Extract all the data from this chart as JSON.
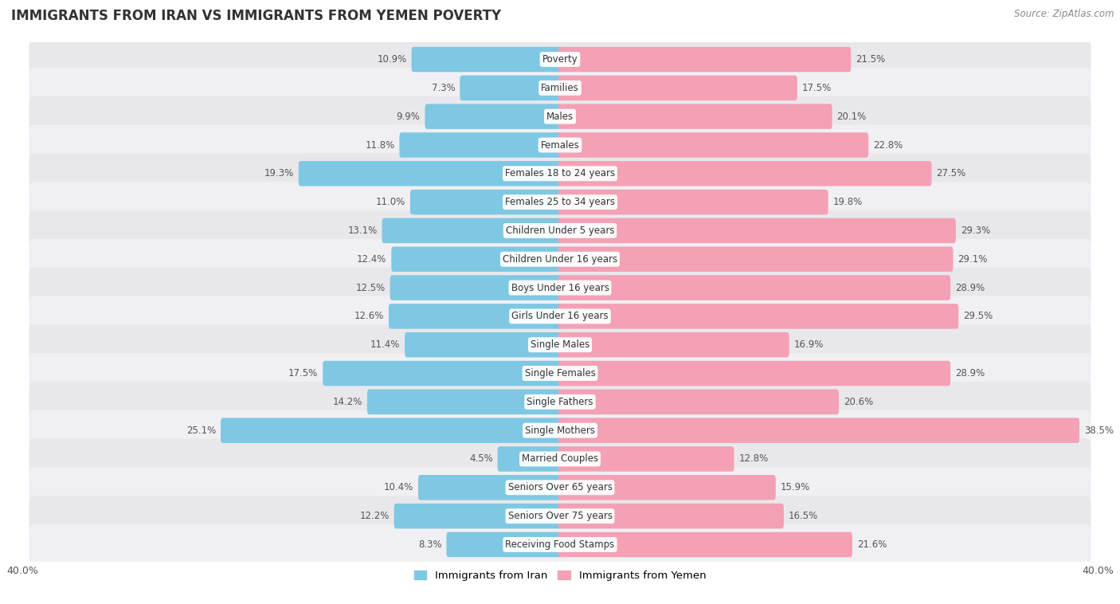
{
  "title": "IMMIGRANTS FROM IRAN VS IMMIGRANTS FROM YEMEN POVERTY",
  "source": "Source: ZipAtlas.com",
  "categories": [
    "Poverty",
    "Families",
    "Males",
    "Females",
    "Females 18 to 24 years",
    "Females 25 to 34 years",
    "Children Under 5 years",
    "Children Under 16 years",
    "Boys Under 16 years",
    "Girls Under 16 years",
    "Single Males",
    "Single Females",
    "Single Fathers",
    "Single Mothers",
    "Married Couples",
    "Seniors Over 65 years",
    "Seniors Over 75 years",
    "Receiving Food Stamps"
  ],
  "iran_values": [
    10.9,
    7.3,
    9.9,
    11.8,
    19.3,
    11.0,
    13.1,
    12.4,
    12.5,
    12.6,
    11.4,
    17.5,
    14.2,
    25.1,
    4.5,
    10.4,
    12.2,
    8.3
  ],
  "yemen_values": [
    21.5,
    17.5,
    20.1,
    22.8,
    27.5,
    19.8,
    29.3,
    29.1,
    28.9,
    29.5,
    16.9,
    28.9,
    20.6,
    38.5,
    12.8,
    15.9,
    16.5,
    21.6
  ],
  "iran_color": "#7ec8e3",
  "yemen_color": "#f4a0b5",
  "iran_label": "Immigrants from Iran",
  "yemen_label": "Immigrants from Yemen",
  "xlim": 40.0,
  "bar_height": 0.58,
  "row_bg_color_even": "#e8e8ec",
  "row_bg_color_odd": "#f0f0f4",
  "title_fontsize": 12,
  "label_fontsize": 8.5,
  "value_fontsize": 8.5,
  "source_fontsize": 8.5,
  "axis_tick_fontsize": 9.0
}
